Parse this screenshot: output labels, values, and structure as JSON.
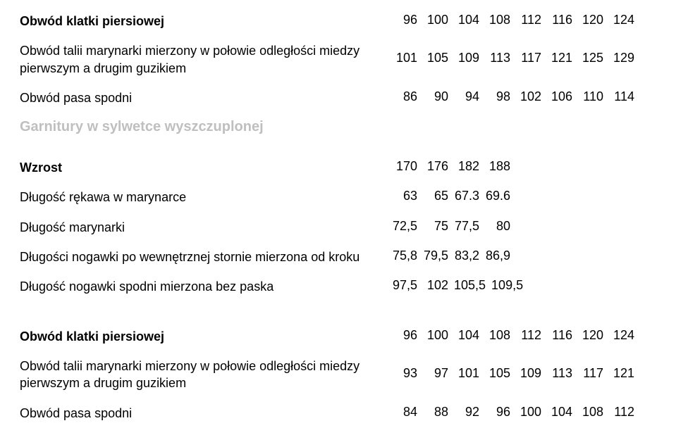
{
  "rows": {
    "r1": {
      "label": "Obwód klatki piersiowej",
      "bold": true,
      "values": [
        "96",
        "100",
        "104",
        "108",
        "112",
        "116",
        "120",
        "124"
      ]
    },
    "r2": {
      "label": "Obwód talii marynarki mierzony w połowie odległości miedzy pierwszym a drugim guzikiem",
      "values": [
        "101",
        "105",
        "109",
        "113",
        "117",
        "121",
        "125",
        "129"
      ]
    },
    "r3": {
      "label": "Obwód pasa spodni",
      "values": [
        "86",
        "90",
        "94",
        "98",
        "102",
        "106",
        "110",
        "114"
      ]
    },
    "section2": "Garnitury w sylwetce wyszczuplonej",
    "g1": {
      "label": "Wzrost",
      "bold": true,
      "values": [
        "170",
        "176",
        "182",
        "188"
      ]
    },
    "g2": {
      "label": "Długość rękawa w marynarce",
      "values": [
        "63",
        "65",
        "67.3",
        "69.6"
      ]
    },
    "g3": {
      "label": "Długość marynarki",
      "values": [
        "72,5",
        "75",
        "77,5",
        "80"
      ]
    },
    "g4": {
      "label": "Długości nogawki po wewnętrznej stornie mierzona od kroku",
      "values": [
        "75,8",
        "79,5",
        "83,2",
        "86,9"
      ]
    },
    "g5": {
      "label": "Długość nogawki spodni mierzona bez paska",
      "values": [
        "97,5",
        "102",
        "105,5",
        "109,5"
      ]
    },
    "b1": {
      "label": "Obwód klatki piersiowej",
      "bold": true,
      "values": [
        "96",
        "100",
        "104",
        "108",
        "112",
        "116",
        "120",
        "124"
      ]
    },
    "b2": {
      "label": "Obwód talii marynarki mierzony w połowie odległości miedzy pierwszym a drugim guzikiem",
      "values": [
        "93",
        "97",
        "101",
        "105",
        "109",
        "113",
        "117",
        "121"
      ]
    },
    "b3": {
      "label": "Obwód pasa spodni",
      "values": [
        "84",
        "88",
        "92",
        "96",
        "100",
        "104",
        "108",
        "112"
      ]
    }
  },
  "colors": {
    "text": "#000000",
    "muted_header": "#bfbfbf",
    "background": "#ffffff"
  },
  "typography": {
    "body_fontsize_pt": 14,
    "header_fontsize_pt": 15,
    "font_family": "Arial"
  }
}
